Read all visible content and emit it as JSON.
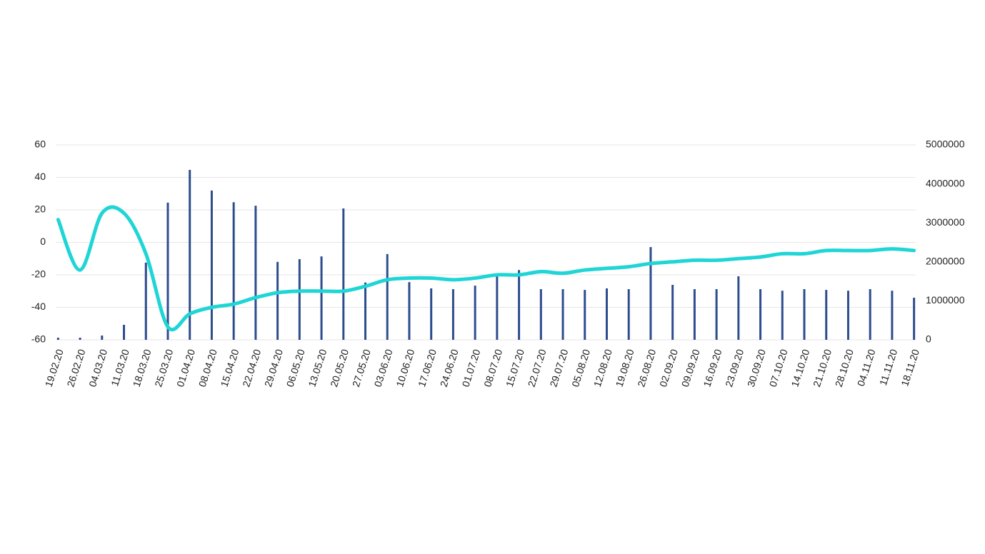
{
  "chart_data": {
    "type": "bar_line",
    "categories": [
      "19.02.20",
      "26.02.20",
      "04.03.20",
      "11.03.20",
      "18.03.20",
      "25.03.20",
      "01.04.20",
      "08.04.20",
      "15.04.20",
      "22.04.20",
      "29.04.20",
      "06.05.20",
      "13.05.20",
      "20.05.20",
      "27.05.20",
      "03.06.20",
      "10.06.20",
      "17.06.20",
      "24.06.20",
      "01.07.20",
      "08.07.20",
      "15.07.20",
      "22.07.20",
      "29.07.20",
      "05.08.20",
      "12.08.20",
      "19.08.20",
      "26.08.20",
      "02.09.20",
      "09.09.20",
      "16.09.20",
      "23.09.20",
      "30.09.20",
      "07.10.20",
      "14.10.20",
      "21.10.20",
      "28.10.20",
      "04.11.20",
      "11.11.20",
      "18.11.20"
    ],
    "series": [
      {
        "type": "bar",
        "axis": "y2",
        "color": "#2e4d8f",
        "values": [
          55000,
          55000,
          110000,
          385000,
          1980000,
          3520000,
          4360000,
          3830000,
          3530000,
          3440000,
          2000000,
          2070000,
          2140000,
          3370000,
          1470000,
          2200000,
          1480000,
          1320000,
          1300000,
          1390000,
          1630000,
          1790000,
          1300000,
          1300000,
          1280000,
          1320000,
          1300000,
          2380000,
          1410000,
          1300000,
          1300000,
          1630000,
          1300000,
          1260000,
          1300000,
          1280000,
          1260000,
          1300000,
          1260000,
          1080000
        ]
      },
      {
        "type": "line",
        "axis": "y",
        "color": "#1fd5d6",
        "values": [
          14,
          -17,
          18,
          18,
          -7,
          -52,
          -44,
          -40,
          -38,
          -34,
          -31,
          -30,
          -30,
          -30,
          -27,
          -23,
          -22,
          -22,
          -23,
          -22,
          -20,
          -20,
          -18,
          -19,
          -17,
          -16,
          -15,
          -13,
          -12,
          -11,
          -11,
          -10,
          -9,
          -7,
          -7,
          -5,
          -5,
          -5,
          -4,
          -5
        ]
      }
    ],
    "ylim": [
      -60,
      60
    ],
    "yticks": [
      -60,
      -40,
      -20,
      0,
      20,
      40,
      60
    ],
    "y2lim": [
      0,
      5000000
    ],
    "y2ticks": [
      0,
      1000000,
      2000000,
      3000000,
      4000000,
      5000000
    ],
    "grid": true
  }
}
